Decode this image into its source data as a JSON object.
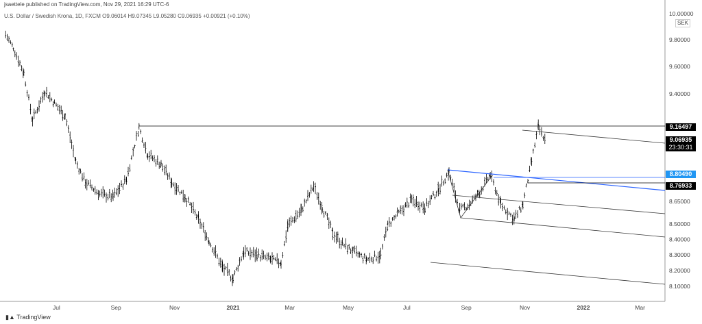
{
  "header": {
    "published": "jsaettele published on TradingView.com, Nov 29, 2021 16:29 UTC-6",
    "symbol": "U.S. Dollar / Swedish Krona, 1D, FXCM",
    "open": "O9.06014",
    "high": "H9.07345",
    "low": "L9.05280",
    "close": "C9.06935",
    "change": "+0.00921 (+0.10%)"
  },
  "currency": "SEK",
  "footer": "TradingView",
  "badges": {
    "level1": "9.16497",
    "last": "9.06935",
    "countdown": "23:30:31",
    "level2": "8.80490",
    "level3": "8.76933"
  },
  "colors": {
    "bars": "#000000",
    "blue_line": "#2962ff",
    "badge_blue": "#2196f3"
  },
  "chart_data": {
    "type": "ohlc",
    "scale": "log",
    "grid": false,
    "ylim": [
      8.05,
      10.05
    ],
    "yticks": [
      "10.00000",
      "9.80000",
      "9.60000",
      "9.40000",
      "9.20000",
      "8.65000",
      "8.50000",
      "8.40000",
      "8.30000",
      "8.20000",
      "8.10000"
    ],
    "xticks": [
      {
        "label": "Jul",
        "date": "2020-07-01"
      },
      {
        "label": "Sep",
        "date": "2020-09-01"
      },
      {
        "label": "Nov",
        "date": "2020-11-01"
      },
      {
        "label": "2021",
        "date": "2021-01-01"
      },
      {
        "label": "Mar",
        "date": "2021-03-01"
      },
      {
        "label": "May",
        "date": "2021-05-01"
      },
      {
        "label": "Jul",
        "date": "2021-07-01"
      },
      {
        "label": "Sep",
        "date": "2021-09-01"
      },
      {
        "label": "Nov",
        "date": "2021-11-01"
      },
      {
        "label": "2022",
        "date": "2022-01-01"
      },
      {
        "label": "Mar",
        "date": "2022-03-01"
      }
    ],
    "series": [
      [
        "2020-05-09",
        9.84
      ],
      [
        "2020-05-17",
        9.74
      ],
      [
        "2020-05-28",
        9.55
      ],
      [
        "2020-06-06",
        9.21
      ],
      [
        "2020-06-19",
        9.42
      ],
      [
        "2020-06-29",
        9.33
      ],
      [
        "2020-07-10",
        9.24
      ],
      [
        "2020-07-21",
        8.92
      ],
      [
        "2020-07-31",
        8.78
      ],
      [
        "2020-08-15",
        8.7
      ],
      [
        "2020-08-29",
        8.68
      ],
      [
        "2020-09-12",
        8.8
      ],
      [
        "2020-09-25",
        9.16
      ],
      [
        "2020-10-04",
        8.97
      ],
      [
        "2020-10-18",
        8.9
      ],
      [
        "2020-10-29",
        8.78
      ],
      [
        "2020-11-12",
        8.68
      ],
      [
        "2020-11-26",
        8.53
      ],
      [
        "2020-12-07",
        8.39
      ],
      [
        "2020-12-21",
        8.22
      ],
      [
        "2021-01-01",
        8.15
      ],
      [
        "2021-01-12",
        8.32
      ],
      [
        "2021-01-26",
        8.3
      ],
      [
        "2021-02-09",
        8.27
      ],
      [
        "2021-02-20",
        8.25
      ],
      [
        "2021-02-27",
        8.49
      ],
      [
        "2021-03-13",
        8.59
      ],
      [
        "2021-03-26",
        8.75
      ],
      [
        "2021-04-04",
        8.61
      ],
      [
        "2021-04-15",
        8.44
      ],
      [
        "2021-04-25",
        8.37
      ],
      [
        "2021-05-06",
        8.32
      ],
      [
        "2021-05-20",
        8.27
      ],
      [
        "2021-06-04",
        8.3
      ],
      [
        "2021-06-11",
        8.49
      ],
      [
        "2021-06-21",
        8.56
      ],
      [
        "2021-07-06",
        8.66
      ],
      [
        "2021-07-20",
        8.61
      ],
      [
        "2021-08-03",
        8.73
      ],
      [
        "2021-08-14",
        8.85
      ],
      [
        "2021-08-25",
        8.59
      ],
      [
        "2021-09-04",
        8.63
      ],
      [
        "2021-09-15",
        8.71
      ],
      [
        "2021-09-26",
        8.83
      ],
      [
        "2021-10-07",
        8.63
      ],
      [
        "2021-10-21",
        8.53
      ],
      [
        "2021-10-30",
        8.63
      ],
      [
        "2021-11-08",
        8.92
      ],
      [
        "2021-11-15",
        9.16
      ],
      [
        "2021-11-22",
        9.07
      ]
    ]
  }
}
